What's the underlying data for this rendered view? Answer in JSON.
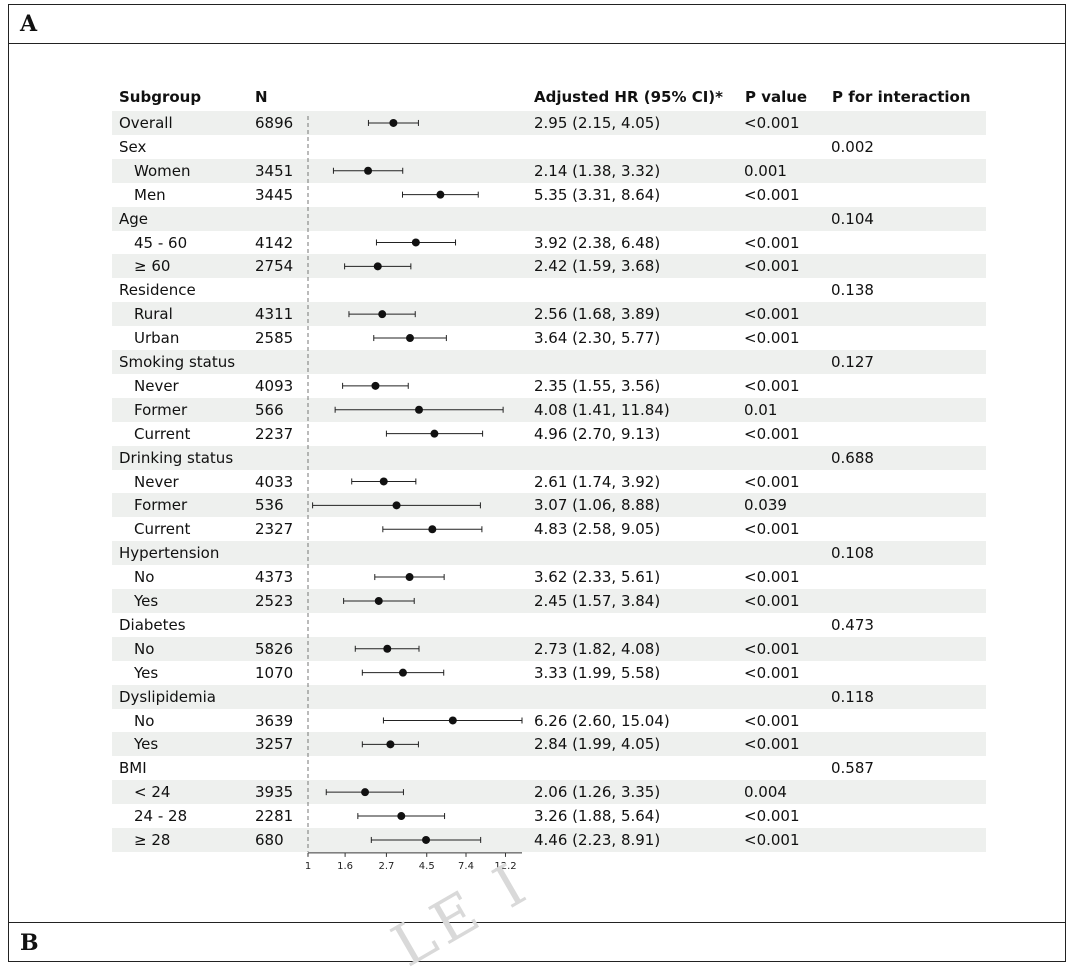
{
  "panels": {
    "a_label": "A",
    "b_label": "B"
  },
  "watermark": "LE I",
  "headers": {
    "subgroup": "Subgroup",
    "n": "N",
    "hr": "Adjusted HR (95% CI)*",
    "p_value": "P value",
    "p_interaction": "P for interaction"
  },
  "chart_data": {
    "type": "forest",
    "x_ticks": [
      "1",
      "1.6",
      "2.7",
      "4.5",
      "7.4",
      "12.2"
    ],
    "x_tick_values": [
      1,
      1.6,
      2.7,
      4.5,
      7.4,
      12.2
    ],
    "x_scale": "log",
    "reference_line": 1,
    "rows": [
      {
        "label": "Overall",
        "indent": false,
        "n": "6896",
        "hr_text": "2.95 (2.15, 4.05)",
        "p": "<0.001",
        "p_int": "",
        "hr": 2.95,
        "lo": 2.15,
        "hi": 4.05
      },
      {
        "label": "Sex",
        "indent": false,
        "n": "",
        "hr_text": "",
        "p": "",
        "p_int": "0.002"
      },
      {
        "label": "Women",
        "indent": true,
        "n": "3451",
        "hr_text": "2.14 (1.38, 3.32)",
        "p": "0.001",
        "p_int": "",
        "hr": 2.14,
        "lo": 1.38,
        "hi": 3.32
      },
      {
        "label": "Men",
        "indent": true,
        "n": "3445",
        "hr_text": "5.35 (3.31, 8.64)",
        "p": "<0.001",
        "p_int": "",
        "hr": 5.35,
        "lo": 3.31,
        "hi": 8.64
      },
      {
        "label": "Age",
        "indent": false,
        "n": "",
        "hr_text": "",
        "p": "",
        "p_int": "0.104"
      },
      {
        "label": "45 - 60",
        "indent": true,
        "n": "4142",
        "hr_text": "3.92 (2.38, 6.48)",
        "p": "<0.001",
        "p_int": "",
        "hr": 3.92,
        "lo": 2.38,
        "hi": 6.48
      },
      {
        "label": "≥ 60",
        "indent": true,
        "n": "2754",
        "hr_text": "2.42 (1.59, 3.68)",
        "p": "<0.001",
        "p_int": "",
        "hr": 2.42,
        "lo": 1.59,
        "hi": 3.68
      },
      {
        "label": "Residence",
        "indent": false,
        "n": "",
        "hr_text": "",
        "p": "",
        "p_int": "0.138"
      },
      {
        "label": "Rural",
        "indent": true,
        "n": "4311",
        "hr_text": "2.56 (1.68, 3.89)",
        "p": "<0.001",
        "p_int": "",
        "hr": 2.56,
        "lo": 1.68,
        "hi": 3.89
      },
      {
        "label": "Urban",
        "indent": true,
        "n": "2585",
        "hr_text": "3.64 (2.30, 5.77)",
        "p": "<0.001",
        "p_int": "",
        "hr": 3.64,
        "lo": 2.3,
        "hi": 5.77
      },
      {
        "label": "Smoking status",
        "indent": false,
        "n": "",
        "hr_text": "",
        "p": "",
        "p_int": "0.127"
      },
      {
        "label": "Never",
        "indent": true,
        "n": "4093",
        "hr_text": "2.35 (1.55, 3.56)",
        "p": "<0.001",
        "p_int": "",
        "hr": 2.35,
        "lo": 1.55,
        "hi": 3.56
      },
      {
        "label": "Former",
        "indent": true,
        "n": "566",
        "hr_text": "4.08 (1.41, 11.84)",
        "p": "0.01",
        "p_int": "",
        "hr": 4.08,
        "lo": 1.41,
        "hi": 11.84
      },
      {
        "label": "Current",
        "indent": true,
        "n": "2237",
        "hr_text": "4.96 (2.70, 9.13)",
        "p": "<0.001",
        "p_int": "",
        "hr": 4.96,
        "lo": 2.7,
        "hi": 9.13
      },
      {
        "label": "Drinking status",
        "indent": false,
        "n": "",
        "hr_text": "",
        "p": "",
        "p_int": "0.688"
      },
      {
        "label": "Never",
        "indent": true,
        "n": "4033",
        "hr_text": "2.61 (1.74, 3.92)",
        "p": "<0.001",
        "p_int": "",
        "hr": 2.61,
        "lo": 1.74,
        "hi": 3.92
      },
      {
        "label": "Former",
        "indent": true,
        "n": "536",
        "hr_text": "3.07 (1.06, 8.88)",
        "p": "0.039",
        "p_int": "",
        "hr": 3.07,
        "lo": 1.06,
        "hi": 8.88
      },
      {
        "label": "Current",
        "indent": true,
        "n": "2327",
        "hr_text": "4.83 (2.58, 9.05)",
        "p": "<0.001",
        "p_int": "",
        "hr": 4.83,
        "lo": 2.58,
        "hi": 9.05
      },
      {
        "label": "Hypertension",
        "indent": false,
        "n": "",
        "hr_text": "",
        "p": "",
        "p_int": "0.108"
      },
      {
        "label": "No",
        "indent": true,
        "n": "4373",
        "hr_text": "3.62 (2.33, 5.61)",
        "p": "<0.001",
        "p_int": "",
        "hr": 3.62,
        "lo": 2.33,
        "hi": 5.61
      },
      {
        "label": "Yes",
        "indent": true,
        "n": "2523",
        "hr_text": "2.45 (1.57, 3.84)",
        "p": "<0.001",
        "p_int": "",
        "hr": 2.45,
        "lo": 1.57,
        "hi": 3.84
      },
      {
        "label": "Diabetes",
        "indent": false,
        "n": "",
        "hr_text": "",
        "p": "",
        "p_int": "0.473"
      },
      {
        "label": "No",
        "indent": true,
        "n": "5826",
        "hr_text": "2.73 (1.82, 4.08)",
        "p": "<0.001",
        "p_int": "",
        "hr": 2.73,
        "lo": 1.82,
        "hi": 4.08
      },
      {
        "label": "Yes",
        "indent": true,
        "n": "1070",
        "hr_text": "3.33 (1.99, 5.58)",
        "p": "<0.001",
        "p_int": "",
        "hr": 3.33,
        "lo": 1.99,
        "hi": 5.58
      },
      {
        "label": "Dyslipidemia",
        "indent": false,
        "n": "",
        "hr_text": "",
        "p": "",
        "p_int": "0.118"
      },
      {
        "label": "No",
        "indent": true,
        "n": "3639",
        "hr_text": "6.26 (2.60, 15.04)",
        "p": "<0.001",
        "p_int": "",
        "hr": 6.26,
        "lo": 2.6,
        "hi": 15.04
      },
      {
        "label": "Yes",
        "indent": true,
        "n": "3257",
        "hr_text": "2.84 (1.99, 4.05)",
        "p": "<0.001",
        "p_int": "",
        "hr": 2.84,
        "lo": 1.99,
        "hi": 4.05
      },
      {
        "label": "BMI",
        "indent": false,
        "n": "",
        "hr_text": "",
        "p": "",
        "p_int": "0.587"
      },
      {
        "label": "< 24",
        "indent": true,
        "n": "3935",
        "hr_text": "2.06 (1.26, 3.35)",
        "p": "0.004",
        "p_int": "",
        "hr": 2.06,
        "lo": 1.26,
        "hi": 3.35
      },
      {
        "label": "24 - 28",
        "indent": true,
        "n": "2281",
        "hr_text": "3.26 (1.88, 5.64)",
        "p": "<0.001",
        "p_int": "",
        "hr": 3.26,
        "lo": 1.88,
        "hi": 5.64
      },
      {
        "label": "≥ 28",
        "indent": true,
        "n": "680",
        "hr_text": "4.46 (2.23, 8.91)",
        "p": "<0.001",
        "p_int": "",
        "hr": 4.46,
        "lo": 2.23,
        "hi": 8.91
      }
    ]
  }
}
